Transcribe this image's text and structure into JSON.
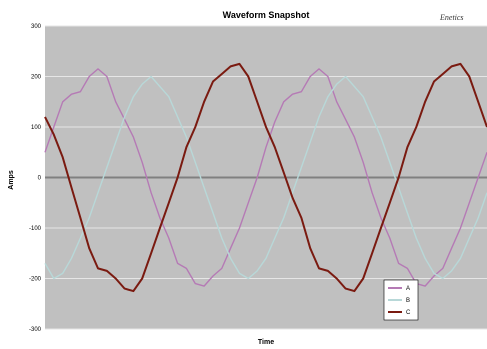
{
  "chart_data": {
    "type": "line",
    "title": "Waveform Snapshot",
    "brand": "Enetics",
    "xlabel": "Time",
    "ylabel": "Amps",
    "ylim": [
      -300,
      300
    ],
    "yticks": [
      300,
      200,
      100,
      0,
      -100,
      -200,
      -300
    ],
    "grid": true,
    "legend_position": "bottom-right",
    "colors": {
      "plot_background": "#c0c0c0",
      "grid": "#e6e6e6",
      "zero_line": "#808080"
    },
    "series": [
      {
        "name": "A",
        "color": "#b57ab5",
        "values": [
          50,
          100,
          150,
          165,
          170,
          200,
          215,
          200,
          150,
          115,
          80,
          30,
          -30,
          -80,
          -120,
          -170,
          -180,
          -210,
          -215,
          -195,
          -180,
          -140,
          -100,
          -50,
          0,
          60,
          110,
          150,
          165,
          170,
          200,
          215,
          200,
          150,
          115,
          80,
          30,
          -30,
          -80,
          -120,
          -170,
          -180,
          -210,
          -215,
          -195,
          -180,
          -140,
          -100,
          -50,
          0,
          50
        ]
      },
      {
        "name": "B",
        "color": "#b8d8d8",
        "values": [
          -170,
          -200,
          -190,
          -160,
          -120,
          -80,
          -30,
          20,
          70,
          120,
          160,
          185,
          200,
          180,
          160,
          120,
          80,
          30,
          -20,
          -70,
          -120,
          -160,
          -190,
          -200,
          -185,
          -160,
          -120,
          -80,
          -30,
          20,
          70,
          120,
          160,
          185,
          200,
          180,
          160,
          120,
          80,
          30,
          -20,
          -70,
          -120,
          -160,
          -190,
          -200,
          -185,
          -160,
          -120,
          -80,
          -30
        ]
      },
      {
        "name": "C",
        "color": "#7a1a10",
        "values": [
          120,
          85,
          40,
          -20,
          -80,
          -140,
          -180,
          -185,
          -200,
          -220,
          -225,
          -200,
          -150,
          -100,
          -50,
          0,
          60,
          100,
          150,
          190,
          205,
          220,
          225,
          200,
          150,
          100,
          60,
          10,
          -40,
          -80,
          -140,
          -180,
          -185,
          -200,
          -220,
          -225,
          -200,
          -150,
          -100,
          -50,
          0,
          60,
          100,
          150,
          190,
          205,
          220,
          225,
          200,
          150,
          100
        ]
      }
    ]
  }
}
